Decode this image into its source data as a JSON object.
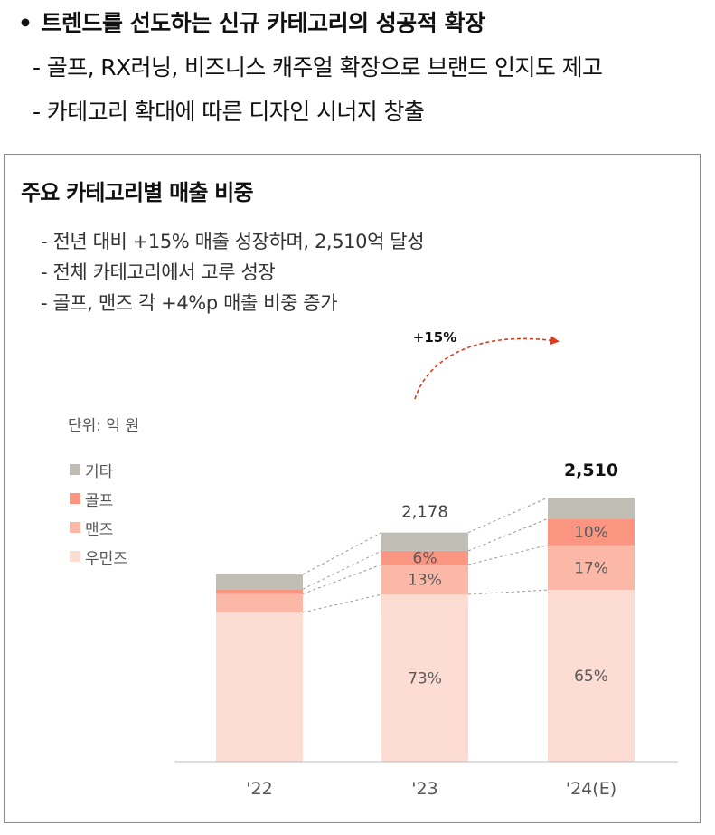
{
  "header": {
    "bullet": "•",
    "title": "트렌드를 선도하는 신규 카테고리의 성공적 확장",
    "sub_items": [
      "- 골프, RX러닝, 비즈니스 캐주얼 확장으로 브랜드 인지도 제고",
      "- 카테고리 확대에 따른 디자인 시너지 창출"
    ]
  },
  "panel": {
    "title": "주요 카테고리별 매출 비중",
    "notes": [
      "- 전년 대비 +15% 매출 성장하며, 2,510억 달성",
      "- 전체 카테고리에서 고루 성장",
      "- 골프, 맨즈 각 +4%p 매출 비중 증가"
    ],
    "unit": "단위: 억 원"
  },
  "chart_data": {
    "type": "bar",
    "stacked": true,
    "categories": [
      "'22",
      "'23",
      "'24(E)"
    ],
    "series": [
      {
        "name": "우먼즈",
        "color": "#fddcd3",
        "values": [
          1420,
          1590,
          1632
        ],
        "labels": [
          "",
          "73%",
          "65%"
        ]
      },
      {
        "name": "맨즈",
        "color": "#fcb8a6",
        "values": [
          175,
          283,
          427
        ],
        "labels": [
          "",
          "13%",
          "17%"
        ]
      },
      {
        "name": "골프",
        "color": "#fa9582",
        "values": [
          45,
          131,
          251
        ],
        "labels": [
          "",
          "6%",
          "10%"
        ]
      },
      {
        "name": "기타",
        "color": "#bfbdb4",
        "values": [
          140,
          174,
          200
        ],
        "labels": [
          "",
          "",
          ""
        ]
      }
    ],
    "totals": [
      "",
      "2,178",
      "2,510"
    ],
    "growth_annotation": "+15%",
    "growth_arrow_color": "#e03a1e",
    "ylim": [
      0,
      2600
    ],
    "legend_position": "left",
    "legend_order": [
      "기타",
      "골프",
      "맨즈",
      "우먼즈"
    ]
  }
}
